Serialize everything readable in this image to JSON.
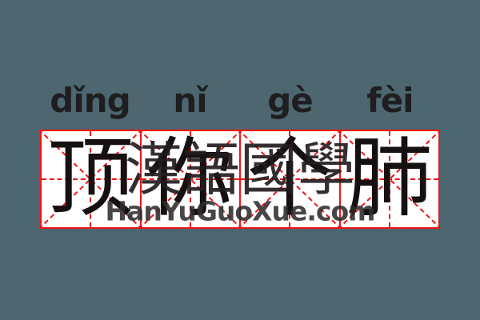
{
  "card": {
    "background_color": "#4d6670",
    "description_colors": {
      "grid_line_red": "#f21414",
      "cell_background": "#ffffff",
      "character_ink": "#161011",
      "pinyin_ink": "#1e1e20",
      "watermark_ink": "#241d20"
    }
  },
  "pinyin": {
    "syllables": [
      "dǐng",
      "nǐ",
      "gè",
      "fèi"
    ]
  },
  "characters": {
    "items": [
      "顶",
      "你",
      "个",
      "肺"
    ]
  },
  "watermark": {
    "cjk_text": "漢語國學",
    "site_text": "HanYuGuoXue.com"
  }
}
